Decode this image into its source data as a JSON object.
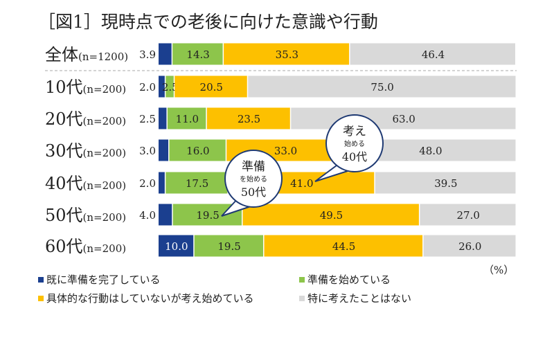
{
  "chart_data": {
    "type": "bar",
    "orientation": "horizontal",
    "stacked": true,
    "title": "［図1］現時点での老後に向けた意識や行動",
    "unit_label": "（%）",
    "xlim": [
      0,
      100
    ],
    "grid": false,
    "legend_placement": "bottom",
    "categories": [
      {
        "main": "全体",
        "sub": "(n=1200)"
      },
      {
        "main": "10代",
        "sub": "(n=200)"
      },
      {
        "main": "20代",
        "sub": "(n=200)"
      },
      {
        "main": "30代",
        "sub": "(n=200)"
      },
      {
        "main": "40代",
        "sub": "(n=200)"
      },
      {
        "main": "50代",
        "sub": "(n=200)"
      },
      {
        "main": "60代",
        "sub": "(n=200)"
      }
    ],
    "series": [
      {
        "name": "既に準備を完了している",
        "color": "#1b3f8f",
        "values": [
          3.9,
          2.0,
          2.5,
          3.0,
          2.0,
          4.0,
          10.0
        ]
      },
      {
        "name": "準備を始めている",
        "color": "#8dc54b",
        "values": [
          14.3,
          2.5,
          11.0,
          16.0,
          17.5,
          19.5,
          19.5
        ]
      },
      {
        "name": "具体的な行動はしていないが考え始めている",
        "color": "#fdc000",
        "values": [
          35.3,
          20.5,
          23.5,
          33.0,
          41.0,
          49.5,
          44.5
        ]
      },
      {
        "name": "特に考えたことはない",
        "color": "#d9d9d9",
        "values": [
          46.4,
          75.0,
          63.0,
          48.0,
          39.5,
          27.0,
          26.0
        ]
      }
    ],
    "value_labels": [
      [
        "3.9",
        "14.3",
        "35.3",
        "46.4"
      ],
      [
        "2.0",
        "2.5",
        "20.5",
        "75.0"
      ],
      [
        "2.5",
        "11.0",
        "23.5",
        "63.0"
      ],
      [
        "3.0",
        "16.0",
        "33.0",
        "48.0"
      ],
      [
        "2.0",
        "17.5",
        "41.0",
        "39.5"
      ],
      [
        "4.0",
        "19.5",
        "49.5",
        "27.0"
      ],
      [
        "10.0",
        "19.5",
        "44.5",
        "26.0"
      ]
    ],
    "annotations": [
      {
        "big": "考え",
        "small": "始める",
        "age": "40代",
        "points_to_row": 4
      },
      {
        "big": "準備",
        "small": "を始める",
        "age": "50代",
        "points_to_row": 5
      }
    ]
  }
}
